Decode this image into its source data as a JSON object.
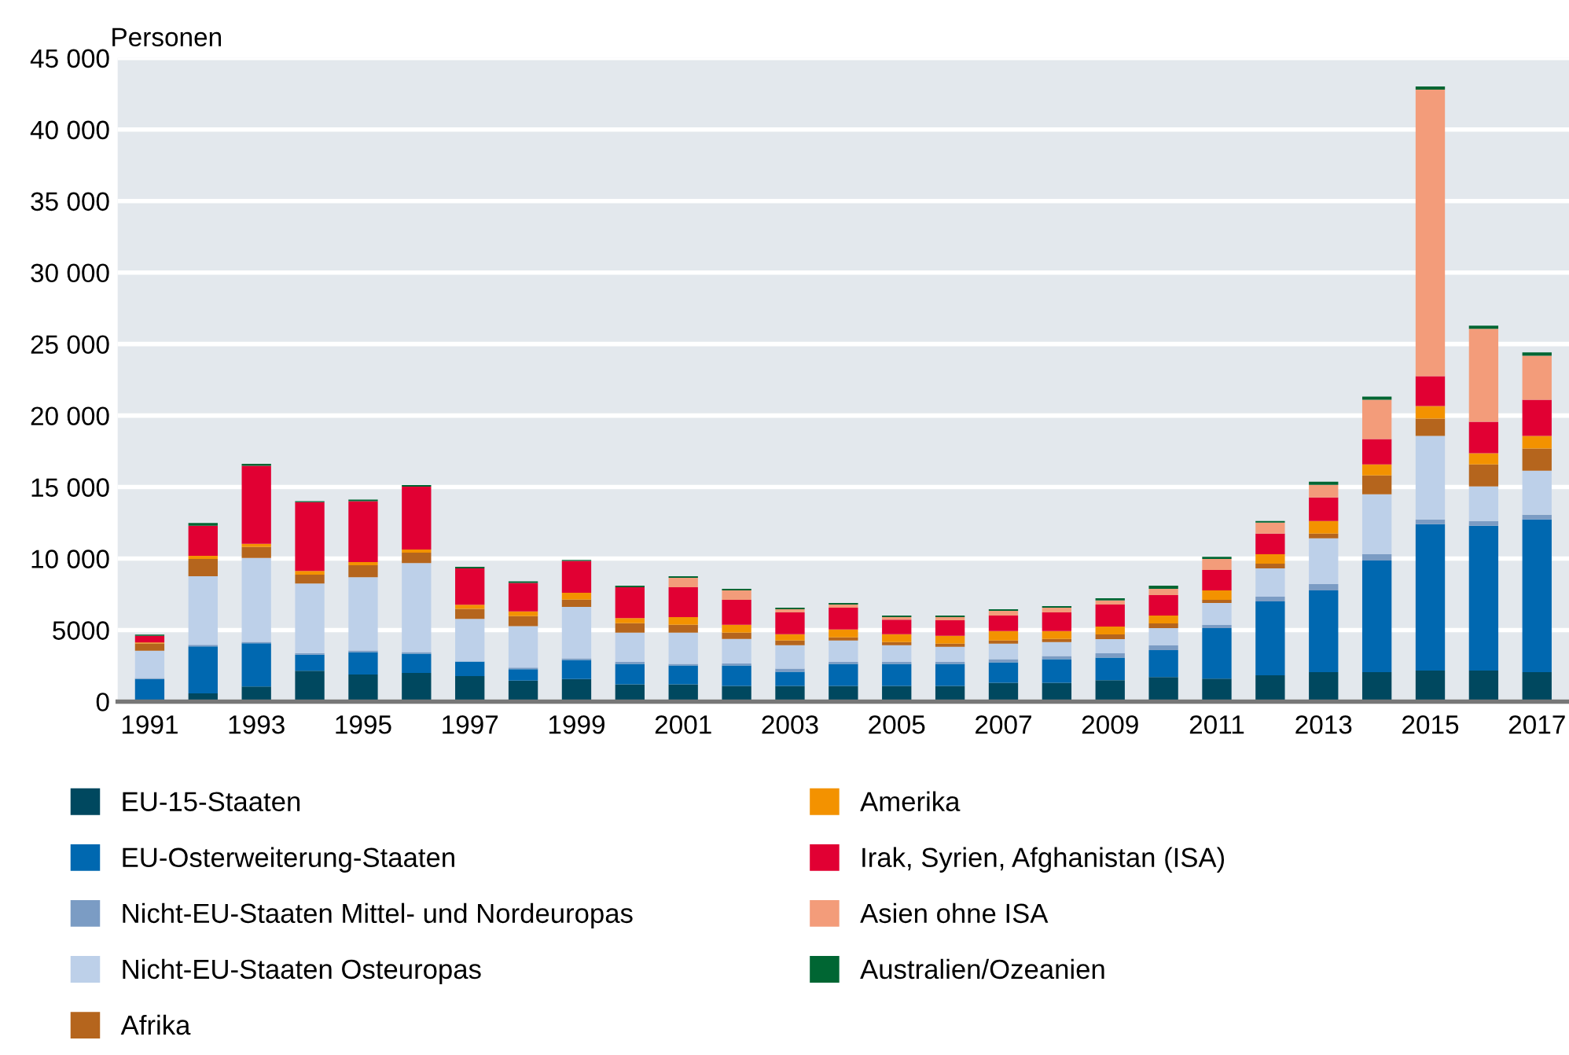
{
  "chart_data": {
    "type": "bar",
    "stacked": true,
    "ylabel": "Personen",
    "categories": [
      "1991",
      null,
      "1993",
      null,
      "1995",
      null,
      "1997",
      null,
      "1999",
      null,
      "2001",
      null,
      "2003",
      null,
      "2005",
      null,
      "2007",
      null,
      "2009",
      null,
      "2011",
      null,
      "2013",
      null,
      "2015",
      null,
      "2017"
    ],
    "series": [
      {
        "name": "EU-15-Staaten",
        "color": "#00485f",
        "values": [
          null,
          580,
          1060,
          2150,
          1890,
          2000,
          1780,
          1460,
          1570,
          1200,
          1200,
          1100,
          1100,
          1100,
          1100,
          1100,
          1310,
          1310,
          1500,
          1720,
          1610,
          1840,
          2060,
          2060,
          2170,
          2170,
          2060
        ]
      },
      {
        "name": "EU-Osterweiterung-Staaten",
        "color": "#0068b0",
        "values": [
          1580,
          3280,
          3020,
          1130,
          1570,
          1350,
          1020,
          800,
          1340,
          1430,
          1320,
          1420,
          980,
          1530,
          1530,
          1530,
          1430,
          1650,
          1580,
          1880,
          3530,
          5170,
          5720,
          7810,
          10230,
          10120,
          10670
        ]
      },
      {
        "name": "Nicht-EU-Staaten Mittel- und Nordeuropas",
        "color": "#7b9cc4",
        "values": [
          70,
          110,
          100,
          110,
          110,
          110,
          null,
          110,
          110,
          140,
          110,
          140,
          220,
          140,
          140,
          140,
          220,
          220,
          300,
          330,
          220,
          330,
          440,
          440,
          330,
          330,
          340
        ]
      },
      {
        "name": "Nicht-EU-Staaten Osteuropas",
        "color": "#bdd0e9",
        "values": [
          1900,
          4800,
          5860,
          4870,
          5130,
          6220,
          2980,
          2910,
          3600,
          2050,
          2190,
          1720,
          1640,
          1500,
          1170,
          1060,
          1090,
          980,
          990,
          1210,
          1540,
          1980,
          3190,
          4190,
          5840,
          2430,
          3080
        ]
      },
      {
        "name": "Afrika",
        "color": "#b5651d",
        "values": [
          510,
          1200,
          770,
          620,
          840,
          730,
          700,
          690,
          510,
          660,
          550,
          440,
          330,
          220,
          220,
          220,
          220,
          220,
          330,
          330,
          220,
          330,
          330,
          1320,
          1210,
          1540,
          1540
        ]
      },
      {
        "name": "Amerika",
        "color": "#f39200",
        "values": [
          70,
          220,
          220,
          260,
          220,
          220,
          290,
          330,
          480,
          360,
          540,
          550,
          440,
          550,
          550,
          550,
          660,
          550,
          550,
          550,
          660,
          660,
          880,
          770,
          880,
          770,
          880
        ]
      },
      {
        "name": "Irak, Syrien, Afghanistan (ISA)",
        "color": "#e10033",
        "values": [
          470,
          2110,
          5460,
          4800,
          4250,
          4400,
          2540,
          2000,
          2220,
          2150,
          2080,
          1750,
          1530,
          1530,
          1020,
          1090,
          1090,
          1310,
          1540,
          1430,
          1430,
          1430,
          1660,
          1760,
          2090,
          2200,
          2530
        ]
      },
      {
        "name": "Asien ohne ISA",
        "color": "#f39c7a",
        "values": [
          0,
          0,
          0,
          0,
          0,
          0,
          0,
          0,
          0,
          0,
          660,
          650,
          220,
          220,
          180,
          220,
          330,
          330,
          290,
          440,
          770,
          770,
          880,
          2750,
          20040,
          6500,
          3090
        ]
      },
      {
        "name": "Australien/Ozeanien",
        "color": "#006633",
        "values": [
          80,
          190,
          140,
          70,
          110,
          110,
          110,
          110,
          70,
          110,
          110,
          110,
          110,
          110,
          110,
          110,
          110,
          110,
          150,
          220,
          150,
          110,
          220,
          220,
          220,
          220,
          220
        ]
      }
    ],
    "ylim": [
      0,
      45000
    ],
    "yticks": [
      0,
      5000,
      {
        "value": 10000,
        "label": "10 000"
      },
      {
        "value": 15000,
        "label": "15 000"
      },
      {
        "value": 20000,
        "label": "20 000"
      },
      {
        "value": 25000,
        "label": "25 000"
      },
      {
        "value": 30000,
        "label": "30 000"
      },
      {
        "value": 35000,
        "label": "35 000"
      },
      {
        "value": 40000,
        "label": "40 000"
      },
      {
        "value": 45000,
        "label": "45 000"
      }
    ],
    "grid": "y",
    "legend": "bottom"
  }
}
